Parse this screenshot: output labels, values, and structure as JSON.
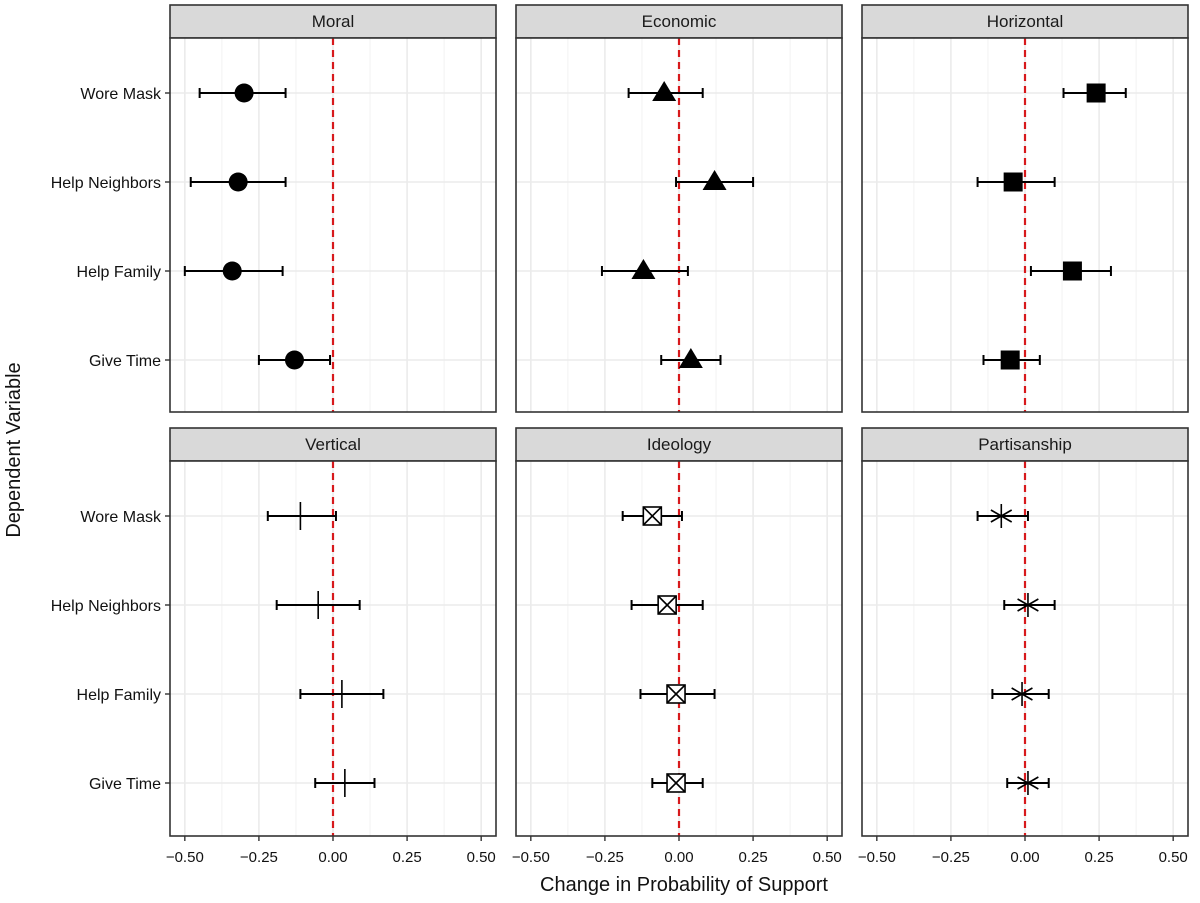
{
  "chart_data": {
    "type": "scatter",
    "subtype": "faceted dot-and-whisker",
    "ylabel": "Dependent Variable",
    "xlabel": "Change in Probability of Support",
    "xlim": [
      -0.55,
      0.55
    ],
    "x_ticks": [
      -0.5,
      -0.25,
      0.0,
      0.25,
      0.5
    ],
    "x_tick_labels": [
      "−0.50",
      "−0.25",
      "0.00",
      "0.25",
      "0.50"
    ],
    "reference_line": {
      "x": 0,
      "style": "dashed",
      "color": "#d7191c"
    },
    "categories": [
      "Wore Mask",
      "Help Neighbors",
      "Help Family",
      "Give Time"
    ],
    "colors": {
      "strip_fill": "#d9d9d9",
      "grid": "#ebebeb",
      "border": "#333333",
      "marker": "#000000"
    },
    "facets": [
      {
        "name": "Moral",
        "shape": "circle",
        "points": [
          {
            "category": "Wore Mask",
            "estimate": -0.3,
            "lower": -0.45,
            "upper": -0.16
          },
          {
            "category": "Help Neighbors",
            "estimate": -0.32,
            "lower": -0.48,
            "upper": -0.16
          },
          {
            "category": "Help Family",
            "estimate": -0.34,
            "lower": -0.5,
            "upper": -0.17
          },
          {
            "category": "Give Time",
            "estimate": -0.13,
            "lower": -0.25,
            "upper": -0.01
          }
        ]
      },
      {
        "name": "Economic",
        "shape": "triangle",
        "points": [
          {
            "category": "Wore Mask",
            "estimate": -0.05,
            "lower": -0.17,
            "upper": 0.08
          },
          {
            "category": "Help Neighbors",
            "estimate": 0.12,
            "lower": -0.01,
            "upper": 0.25
          },
          {
            "category": "Help Family",
            "estimate": -0.12,
            "lower": -0.26,
            "upper": 0.03
          },
          {
            "category": "Give Time",
            "estimate": 0.04,
            "lower": -0.06,
            "upper": 0.14
          }
        ]
      },
      {
        "name": "Horizontal",
        "shape": "square",
        "points": [
          {
            "category": "Wore Mask",
            "estimate": 0.24,
            "lower": 0.13,
            "upper": 0.34
          },
          {
            "category": "Help Neighbors",
            "estimate": -0.04,
            "lower": -0.16,
            "upper": 0.1
          },
          {
            "category": "Help Family",
            "estimate": 0.16,
            "lower": 0.02,
            "upper": 0.29
          },
          {
            "category": "Give Time",
            "estimate": -0.05,
            "lower": -0.14,
            "upper": 0.05
          }
        ]
      },
      {
        "name": "Vertical",
        "shape": "plus",
        "points": [
          {
            "category": "Wore Mask",
            "estimate": -0.11,
            "lower": -0.22,
            "upper": 0.01
          },
          {
            "category": "Help Neighbors",
            "estimate": -0.05,
            "lower": -0.19,
            "upper": 0.09
          },
          {
            "category": "Help Family",
            "estimate": 0.03,
            "lower": -0.11,
            "upper": 0.17
          },
          {
            "category": "Give Time",
            "estimate": 0.04,
            "lower": -0.06,
            "upper": 0.14
          }
        ]
      },
      {
        "name": "Ideology",
        "shape": "boxed-x",
        "points": [
          {
            "category": "Wore Mask",
            "estimate": -0.09,
            "lower": -0.19,
            "upper": 0.01
          },
          {
            "category": "Help Neighbors",
            "estimate": -0.04,
            "lower": -0.16,
            "upper": 0.08
          },
          {
            "category": "Help Family",
            "estimate": -0.01,
            "lower": -0.13,
            "upper": 0.12
          },
          {
            "category": "Give Time",
            "estimate": -0.01,
            "lower": -0.09,
            "upper": 0.08
          }
        ]
      },
      {
        "name": "Partisanship",
        "shape": "asterisk",
        "points": [
          {
            "category": "Wore Mask",
            "estimate": -0.08,
            "lower": -0.16,
            "upper": 0.01
          },
          {
            "category": "Help Neighbors",
            "estimate": 0.01,
            "lower": -0.07,
            "upper": 0.1
          },
          {
            "category": "Help Family",
            "estimate": -0.01,
            "lower": -0.11,
            "upper": 0.08
          },
          {
            "category": "Give Time",
            "estimate": 0.01,
            "lower": -0.06,
            "upper": 0.08
          }
        ]
      }
    ]
  }
}
